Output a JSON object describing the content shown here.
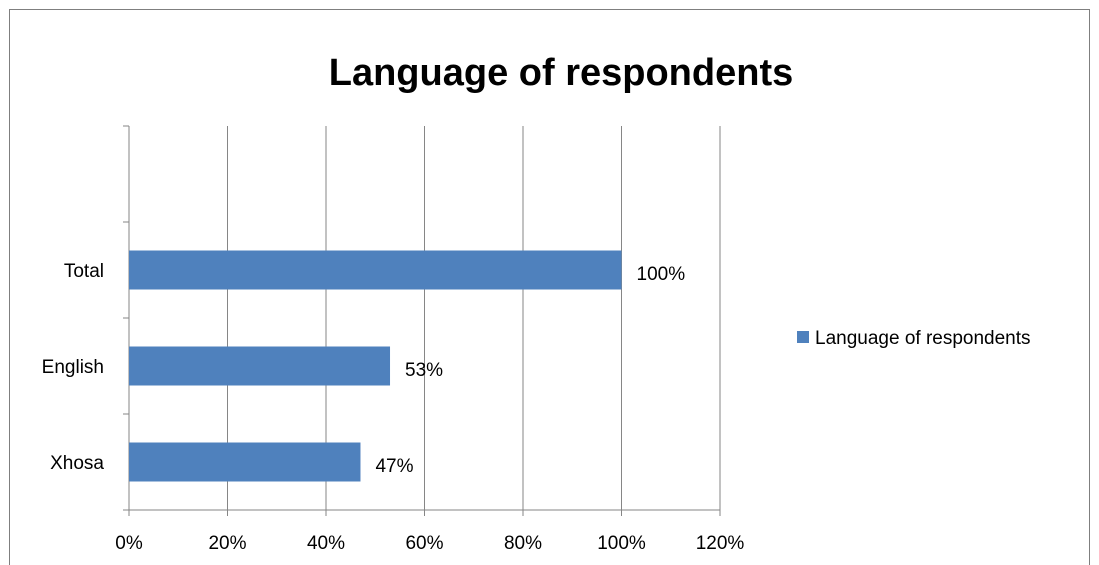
{
  "chart_data": {
    "type": "bar",
    "orientation": "horizontal",
    "title": "Language of respondents",
    "categories": [
      "Xhosa",
      "English",
      "Total"
    ],
    "series": [
      {
        "name": "Language of respondents",
        "values": [
          0.47,
          0.53,
          1.0
        ],
        "color": "#4f81bd"
      }
    ],
    "data_labels": [
      "47%",
      "53%",
      "100%"
    ],
    "xlim": [
      0,
      1.2
    ],
    "x_ticks": [
      0,
      0.2,
      0.4,
      0.6,
      0.8,
      1.0,
      1.2
    ],
    "x_tick_labels": [
      "0%",
      "20%",
      "40%",
      "60%",
      "80%",
      "100%",
      "120%"
    ],
    "grid": "vertical",
    "legend_position": "right"
  }
}
